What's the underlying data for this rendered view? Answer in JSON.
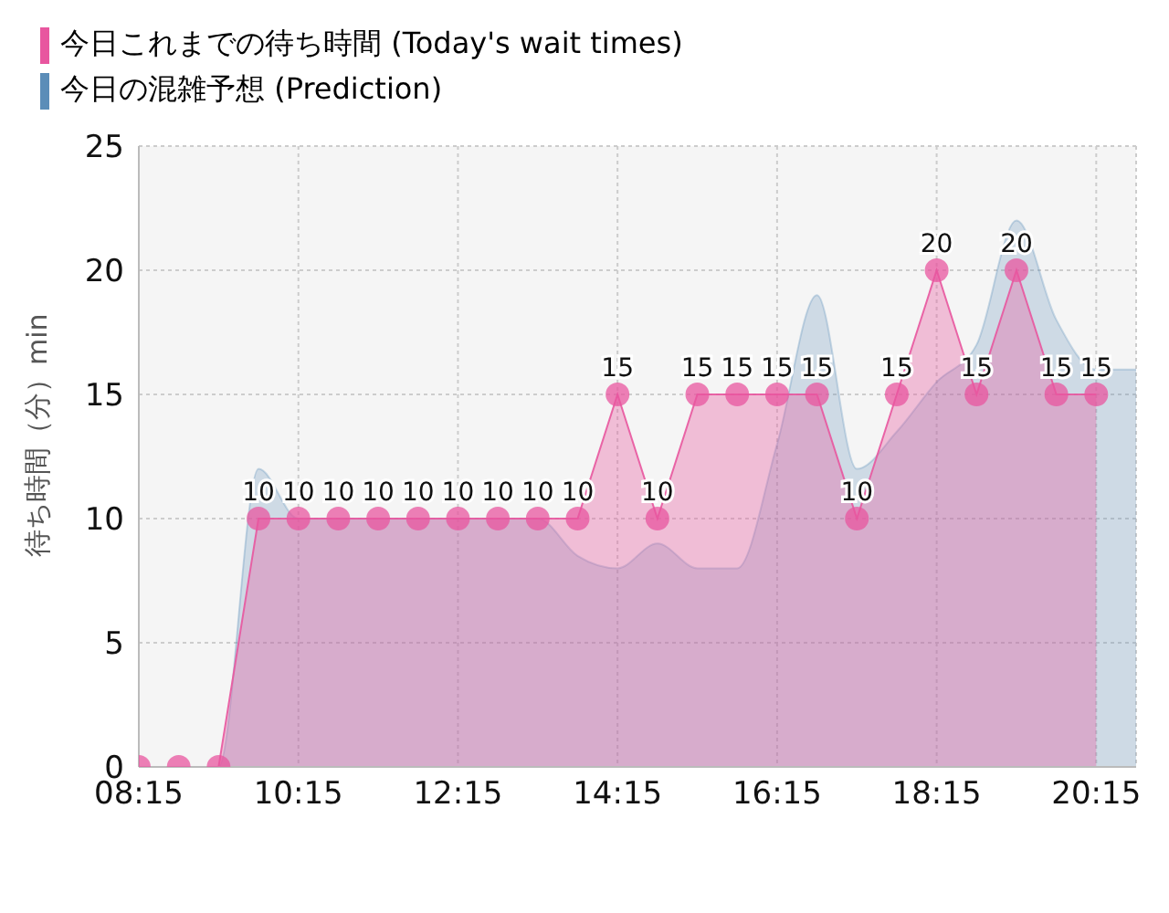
{
  "chart_data": {
    "type": "area",
    "ylabel": "待ち時間（分）min",
    "xlim": [
      8.25,
      20.75
    ],
    "xticks": [
      {
        "value": 8.25,
        "label": "08:15"
      },
      {
        "value": 10.25,
        "label": "10:15"
      },
      {
        "value": 12.25,
        "label": "12:15"
      },
      {
        "value": 14.25,
        "label": "14:15"
      },
      {
        "value": 16.25,
        "label": "16:15"
      },
      {
        "value": 18.25,
        "label": "18:15"
      },
      {
        "value": 20.25,
        "label": "20:15"
      }
    ],
    "ylim": [
      0,
      25
    ],
    "yticks": [
      0,
      5,
      10,
      15,
      20,
      25
    ],
    "grid": true,
    "legend": "top left",
    "marker": "circle",
    "series": [
      {
        "name": "今日これまでの待ち時間 (Today's wait times)",
        "color": "#e8569f",
        "x": [
          8.25,
          8.75,
          9.25,
          9.75,
          10.25,
          10.75,
          11.25,
          11.75,
          12.25,
          12.75,
          13.25,
          13.75,
          14.25,
          14.75,
          15.25,
          15.75,
          16.25,
          16.75,
          17.25,
          17.75,
          18.25,
          18.75,
          19.25,
          19.75,
          20.25
        ],
        "values": [
          0,
          0,
          0,
          10,
          10,
          10,
          10,
          10,
          10,
          10,
          10,
          10,
          15,
          10,
          15,
          15,
          15,
          15,
          10,
          15,
          20,
          15,
          20,
          15,
          15
        ],
        "value_labels": [
          null,
          null,
          null,
          "10",
          "10",
          "10",
          "10",
          "10",
          "10",
          "10",
          "10",
          "10",
          "15",
          "10",
          "15",
          "15",
          "15",
          "15",
          "10",
          "15",
          "20",
          "15",
          "20",
          "15",
          "15"
        ]
      },
      {
        "name": "今日の混雑予想 (Prediction)",
        "color": "#5b8db8",
        "marker": "none",
        "x": [
          8.25,
          8.75,
          9.25,
          9.75,
          10.25,
          10.75,
          11.25,
          11.75,
          12.25,
          12.75,
          13.25,
          13.75,
          14.25,
          14.75,
          15.25,
          15.75,
          16.25,
          16.75,
          17.25,
          17.75,
          18.25,
          18.75,
          19.25,
          19.75,
          20.25,
          20.75
        ],
        "values": [
          0,
          0,
          0,
          12,
          10,
          10,
          10,
          10,
          10,
          10,
          10,
          8.5,
          8,
          9,
          8,
          8,
          13,
          19,
          12,
          13.5,
          15.5,
          17,
          22,
          18,
          16,
          16
        ]
      }
    ]
  }
}
